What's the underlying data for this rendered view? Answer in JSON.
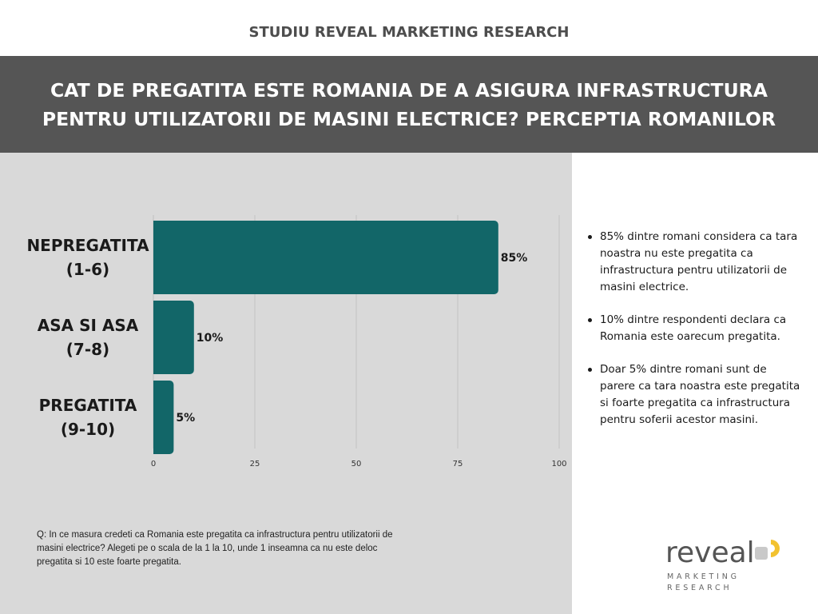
{
  "header": {
    "study_label": "STUDIU REVEAL MARKETING RESEARCH",
    "title_lines": [
      "CAT DE PREGATITA ESTE ROMANIA DE A ASIGURA INFRASTRUCTURA",
      "PENTRU UTILIZATORII DE MASINI ELECTRICE? PERCEPTIA ROMANILOR"
    ]
  },
  "chart_data": {
    "type": "bar",
    "orientation": "horizontal",
    "categories": [
      [
        "NEPREGATITA",
        "(1-6)"
      ],
      [
        "ASA SI ASA",
        "(7-8)"
      ],
      [
        "PREGATITA",
        "(9-10)"
      ]
    ],
    "values": [
      85,
      10,
      5
    ],
    "value_labels": [
      "85%",
      "10%",
      "5%"
    ],
    "xlim": [
      0,
      100
    ],
    "xticks": [
      "0",
      "25",
      "50",
      "75",
      "100"
    ],
    "grid": "vertical",
    "bar_color": "#126668"
  },
  "question": "Q: In ce masura credeti ca Romania este pregatita ca infrastructura pentru utilizatorii de masini electrice? Alegeti pe o scala de la 1 la 10, unde 1 inseamna ca nu este deloc pregatita si 10 este foarte pregatita.",
  "insights": [
    "85% dintre romani considera ca tara noastra nu este pregatita ca infrastructura pentru utilizatorii de masini electrice.",
    "10% dintre respondenti declara ca Romania este oarecum pregatita.",
    "Doar 5% dintre romani sunt de parere ca tara noastra este pregatita si foarte pregatita ca infrastructura pentru soferii acestor masini."
  ],
  "logo": {
    "word": "reveal",
    "sub1": "MARKETING",
    "sub2": "RESEARCH",
    "colors": {
      "gray": "#c9c9c9",
      "yellow": "#f2c230",
      "text": "#555555"
    }
  },
  "colors": {
    "title_band": "#555555",
    "chart_panel": "#d9d9d9",
    "bar": "#126668"
  }
}
